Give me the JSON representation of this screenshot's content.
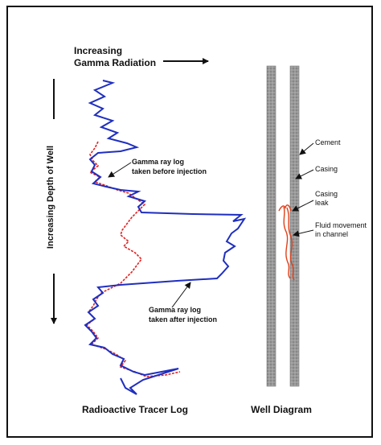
{
  "header": {
    "title_line1": "Increasing",
    "title_line2": "Gamma Radiation"
  },
  "axis": {
    "depth_label": "Increasing Depth of Well"
  },
  "log": {
    "before_label_line1": "Gamma ray log",
    "before_label_line2": "taken before injection",
    "after_label_line1": "Gamma ray log",
    "after_label_line2": "taken after injection",
    "caption": "Radioactive Tracer Log",
    "before_color": "#e02020",
    "after_color": "#1f2fbf"
  },
  "well": {
    "cement_label": "Cement",
    "casing_label": "Casing",
    "leak_label_line1": "Casing",
    "leak_label_line2": "leak",
    "fluid_label_line1": "Fluid movement",
    "fluid_label_line2": "in channel",
    "caption": "Well Diagram",
    "wall_color": "#8a8a8a",
    "fluid_color": "#e0401a"
  }
}
